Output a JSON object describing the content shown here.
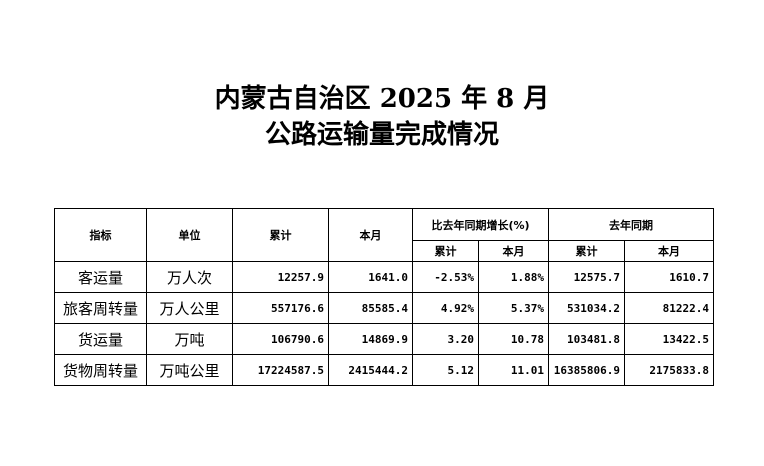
{
  "title": {
    "line1": "内蒙古自治区 2025 年 8 月",
    "line2": "公路运输量完成情况"
  },
  "table": {
    "headers": {
      "indicator": "指标",
      "unit": "单位",
      "cumulative": "累计",
      "month": "本月",
      "growth": "比去年同期增长(%)",
      "last_year": "去年同期",
      "growth_cum": "累计",
      "growth_month": "本月",
      "ly_cum": "累计",
      "ly_month": "本月"
    },
    "rows": [
      {
        "indicator": "客运量",
        "unit": "万人次",
        "cumulative": "12257.9",
        "month": "1641.0",
        "growth_cum": "-2.53%",
        "growth_month": "1.88%",
        "ly_cum": "12575.7",
        "ly_month": "1610.7"
      },
      {
        "indicator": "旅客周转量",
        "unit": "万人公里",
        "cumulative": "557176.6",
        "month": "85585.4",
        "growth_cum": "4.92%",
        "growth_month": "5.37%",
        "ly_cum": "531034.2",
        "ly_month": "81222.4"
      },
      {
        "indicator": "货运量",
        "unit": "万吨",
        "cumulative": "106790.6",
        "month": "14869.9",
        "growth_cum": "3.20",
        "growth_month": "10.78",
        "ly_cum": "103481.8",
        "ly_month": "13422.5"
      },
      {
        "indicator": "货物周转量",
        "unit": "万吨公里",
        "cumulative": "17224587.5",
        "month": "2415444.2",
        "growth_cum": "5.12",
        "growth_month": "11.01",
        "ly_cum": "16385806.9",
        "ly_month": "2175833.8"
      }
    ]
  }
}
